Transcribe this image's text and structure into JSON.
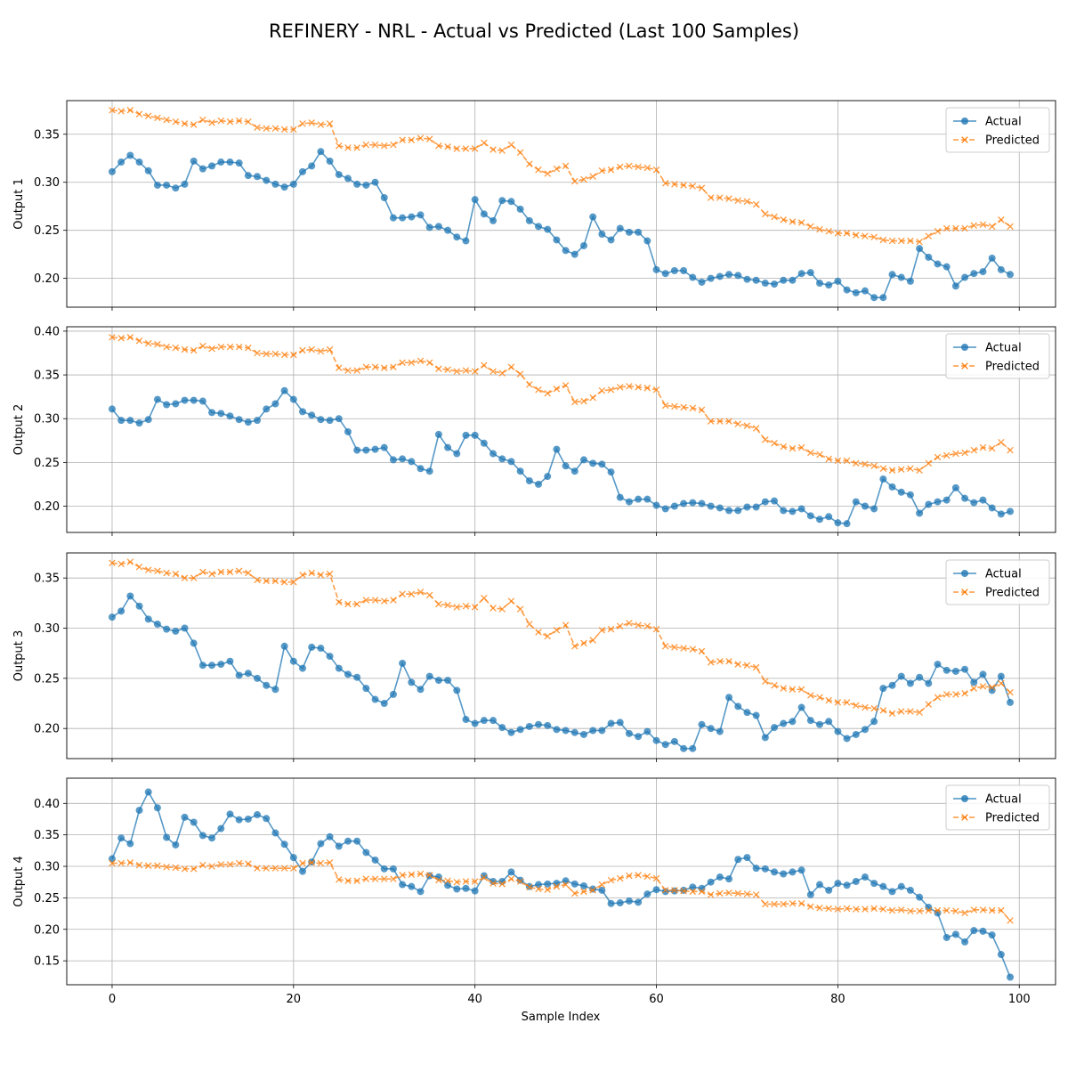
{
  "figure": {
    "title": "REFINERY - NRL - Actual vs Predicted (Last 100 Samples)",
    "xlabel": "Sample Index"
  },
  "colors": {
    "actual": "#1f77b4",
    "predicted": "#ff7f0e",
    "grid": "#b0b0b0"
  },
  "chart_data": [
    {
      "type": "line",
      "ylabel": "Output 1",
      "xlim": [
        -5,
        104
      ],
      "ylim": [
        0.17,
        0.385
      ],
      "xticks": [
        0,
        20,
        40,
        60,
        80,
        100
      ],
      "yticks": [
        0.2,
        0.25,
        0.3,
        0.35
      ],
      "grid": true,
      "legend_position": "top-right",
      "series": [
        {
          "name": "Actual",
          "style": "solid-circle",
          "values": [
            0.311,
            0.321,
            0.328,
            0.321,
            0.312,
            0.297,
            0.297,
            0.294,
            0.298,
            0.322,
            0.314,
            0.317,
            0.321,
            0.321,
            0.32,
            0.307,
            0.306,
            0.302,
            0.298,
            0.295,
            0.298,
            0.311,
            0.317,
            0.332,
            0.322,
            0.308,
            0.304,
            0.298,
            0.297,
            0.3,
            0.284,
            0.263,
            0.263,
            0.264,
            0.266,
            0.253,
            0.254,
            0.25,
            0.243,
            0.239,
            0.282,
            0.267,
            0.26,
            0.281,
            0.28,
            0.272,
            0.26,
            0.254,
            0.251,
            0.24,
            0.229,
            0.225,
            0.234,
            0.264,
            0.246,
            0.24,
            0.252,
            0.248,
            0.248,
            0.239,
            0.209,
            0.205,
            0.208,
            0.208,
            0.201,
            0.196,
            0.2,
            0.202,
            0.204,
            0.203,
            0.199,
            0.198,
            0.195,
            0.194,
            0.198,
            0.198,
            0.205,
            0.206,
            0.195,
            0.193,
            0.197,
            0.188,
            0.185,
            0.187,
            0.18,
            0.18,
            0.204,
            0.201,
            0.197,
            0.231,
            0.222,
            0.215,
            0.212,
            0.192,
            0.201,
            0.205,
            0.207,
            0.221,
            0.209,
            0.204
          ]
        },
        {
          "name": "Predicted",
          "style": "dashed-x",
          "values": [
            0.375,
            0.374,
            0.375,
            0.371,
            0.369,
            0.367,
            0.365,
            0.363,
            0.361,
            0.36,
            0.365,
            0.362,
            0.364,
            0.363,
            0.364,
            0.363,
            0.357,
            0.356,
            0.356,
            0.355,
            0.355,
            0.361,
            0.362,
            0.36,
            0.361,
            0.338,
            0.336,
            0.336,
            0.339,
            0.339,
            0.338,
            0.339,
            0.344,
            0.344,
            0.346,
            0.345,
            0.338,
            0.337,
            0.335,
            0.335,
            0.335,
            0.341,
            0.334,
            0.333,
            0.339,
            0.331,
            0.319,
            0.313,
            0.309,
            0.314,
            0.317,
            0.301,
            0.303,
            0.306,
            0.312,
            0.313,
            0.316,
            0.317,
            0.316,
            0.315,
            0.313,
            0.299,
            0.298,
            0.297,
            0.296,
            0.294,
            0.284,
            0.284,
            0.283,
            0.281,
            0.28,
            0.277,
            0.267,
            0.264,
            0.261,
            0.259,
            0.258,
            0.254,
            0.251,
            0.249,
            0.247,
            0.247,
            0.245,
            0.244,
            0.243,
            0.24,
            0.239,
            0.239,
            0.239,
            0.238,
            0.244,
            0.249,
            0.252,
            0.252,
            0.252,
            0.255,
            0.256,
            0.254,
            0.261,
            0.254
          ]
        }
      ]
    },
    {
      "type": "line",
      "ylabel": "Output 2",
      "xlim": [
        -5,
        104
      ],
      "ylim": [
        0.17,
        0.405
      ],
      "xticks": [
        0,
        20,
        40,
        60,
        80,
        100
      ],
      "yticks": [
        0.2,
        0.25,
        0.3,
        0.35,
        0.4
      ],
      "grid": true,
      "legend_position": "top-right",
      "series": [
        {
          "name": "Actual",
          "style": "solid-circle",
          "values": [
            0.311,
            0.298,
            0.298,
            0.295,
            0.299,
            0.322,
            0.316,
            0.317,
            0.321,
            0.321,
            0.32,
            0.307,
            0.306,
            0.303,
            0.299,
            0.296,
            0.298,
            0.311,
            0.317,
            0.332,
            0.322,
            0.308,
            0.304,
            0.299,
            0.298,
            0.3,
            0.285,
            0.264,
            0.264,
            0.265,
            0.267,
            0.253,
            0.254,
            0.251,
            0.243,
            0.24,
            0.282,
            0.267,
            0.26,
            0.281,
            0.281,
            0.272,
            0.26,
            0.254,
            0.251,
            0.24,
            0.229,
            0.225,
            0.234,
            0.265,
            0.246,
            0.24,
            0.253,
            0.249,
            0.248,
            0.239,
            0.21,
            0.205,
            0.208,
            0.208,
            0.201,
            0.197,
            0.2,
            0.203,
            0.204,
            0.203,
            0.2,
            0.198,
            0.195,
            0.195,
            0.199,
            0.199,
            0.205,
            0.206,
            0.195,
            0.194,
            0.197,
            0.189,
            0.185,
            0.188,
            0.181,
            0.18,
            0.205,
            0.2,
            0.197,
            0.231,
            0.222,
            0.216,
            0.213,
            0.192,
            0.202,
            0.205,
            0.207,
            0.221,
            0.209,
            0.204,
            0.207,
            0.198,
            0.191,
            0.194
          ]
        },
        {
          "name": "Predicted",
          "style": "dashed-x",
          "values": [
            0.393,
            0.392,
            0.393,
            0.389,
            0.386,
            0.385,
            0.382,
            0.381,
            0.379,
            0.378,
            0.383,
            0.38,
            0.382,
            0.382,
            0.382,
            0.381,
            0.375,
            0.374,
            0.374,
            0.373,
            0.373,
            0.378,
            0.379,
            0.377,
            0.379,
            0.358,
            0.355,
            0.355,
            0.359,
            0.359,
            0.358,
            0.359,
            0.364,
            0.364,
            0.366,
            0.364,
            0.357,
            0.356,
            0.354,
            0.355,
            0.354,
            0.361,
            0.354,
            0.352,
            0.359,
            0.351,
            0.339,
            0.333,
            0.329,
            0.334,
            0.338,
            0.319,
            0.32,
            0.324,
            0.332,
            0.333,
            0.336,
            0.337,
            0.336,
            0.335,
            0.333,
            0.315,
            0.314,
            0.313,
            0.312,
            0.31,
            0.297,
            0.297,
            0.297,
            0.294,
            0.292,
            0.289,
            0.276,
            0.272,
            0.268,
            0.266,
            0.267,
            0.261,
            0.259,
            0.254,
            0.252,
            0.252,
            0.249,
            0.248,
            0.246,
            0.243,
            0.241,
            0.242,
            0.243,
            0.241,
            0.249,
            0.256,
            0.258,
            0.26,
            0.261,
            0.264,
            0.267,
            0.266,
            0.273,
            0.264
          ]
        }
      ]
    },
    {
      "type": "line",
      "ylabel": "Output 3",
      "xlim": [
        -5,
        104
      ],
      "ylim": [
        0.17,
        0.375
      ],
      "xticks": [
        0,
        20,
        40,
        60,
        80,
        100
      ],
      "yticks": [
        0.2,
        0.25,
        0.3,
        0.35
      ],
      "grid": true,
      "legend_position": "top-right",
      "series": [
        {
          "name": "Actual",
          "style": "solid-circle",
          "values": [
            0.311,
            0.317,
            0.332,
            0.322,
            0.309,
            0.304,
            0.299,
            0.297,
            0.3,
            0.285,
            0.263,
            0.263,
            0.264,
            0.267,
            0.253,
            0.255,
            0.25,
            0.243,
            0.239,
            0.282,
            0.267,
            0.26,
            0.281,
            0.28,
            0.272,
            0.26,
            0.254,
            0.251,
            0.24,
            0.229,
            0.225,
            0.234,
            0.265,
            0.246,
            0.239,
            0.252,
            0.248,
            0.248,
            0.238,
            0.209,
            0.205,
            0.208,
            0.208,
            0.201,
            0.196,
            0.199,
            0.202,
            0.204,
            0.203,
            0.199,
            0.198,
            0.196,
            0.194,
            0.198,
            0.198,
            0.205,
            0.206,
            0.195,
            0.192,
            0.197,
            0.188,
            0.184,
            0.187,
            0.18,
            0.18,
            0.204,
            0.2,
            0.197,
            0.231,
            0.222,
            0.216,
            0.213,
            0.191,
            0.201,
            0.205,
            0.207,
            0.221,
            0.208,
            0.204,
            0.207,
            0.197,
            0.19,
            0.194,
            0.199,
            0.207,
            0.24,
            0.243,
            0.252,
            0.245,
            0.251,
            0.245,
            0.264,
            0.258,
            0.257,
            0.259,
            0.246,
            0.254,
            0.238,
            0.252,
            0.226
          ]
        },
        {
          "name": "Predicted",
          "style": "dashed-x",
          "values": [
            0.365,
            0.364,
            0.366,
            0.361,
            0.358,
            0.357,
            0.355,
            0.354,
            0.35,
            0.35,
            0.356,
            0.354,
            0.356,
            0.356,
            0.357,
            0.355,
            0.348,
            0.347,
            0.347,
            0.346,
            0.346,
            0.353,
            0.355,
            0.353,
            0.354,
            0.326,
            0.324,
            0.324,
            0.328,
            0.328,
            0.327,
            0.328,
            0.334,
            0.334,
            0.336,
            0.333,
            0.324,
            0.323,
            0.321,
            0.322,
            0.321,
            0.33,
            0.32,
            0.319,
            0.327,
            0.319,
            0.304,
            0.296,
            0.292,
            0.298,
            0.303,
            0.282,
            0.285,
            0.288,
            0.298,
            0.299,
            0.302,
            0.305,
            0.303,
            0.302,
            0.299,
            0.282,
            0.281,
            0.28,
            0.279,
            0.277,
            0.266,
            0.267,
            0.267,
            0.264,
            0.263,
            0.261,
            0.247,
            0.243,
            0.24,
            0.239,
            0.239,
            0.233,
            0.231,
            0.228,
            0.226,
            0.226,
            0.223,
            0.221,
            0.22,
            0.218,
            0.215,
            0.217,
            0.217,
            0.216,
            0.224,
            0.231,
            0.234,
            0.234,
            0.235,
            0.24,
            0.242,
            0.241,
            0.245,
            0.236
          ]
        }
      ]
    },
    {
      "type": "line",
      "ylabel": "Output 4",
      "xlim": [
        -5,
        104
      ],
      "ylim": [
        0.112,
        0.44
      ],
      "xticks": [
        0,
        20,
        40,
        60,
        80,
        100
      ],
      "yticks": [
        0.15,
        0.2,
        0.25,
        0.3,
        0.35,
        0.4
      ],
      "grid": true,
      "legend_position": "top-right",
      "series": [
        {
          "name": "Actual",
          "style": "solid-circle",
          "values": [
            0.312,
            0.345,
            0.336,
            0.389,
            0.418,
            0.393,
            0.346,
            0.334,
            0.378,
            0.37,
            0.349,
            0.345,
            0.36,
            0.383,
            0.374,
            0.375,
            0.382,
            0.376,
            0.353,
            0.335,
            0.314,
            0.292,
            0.307,
            0.336,
            0.347,
            0.332,
            0.34,
            0.34,
            0.322,
            0.31,
            0.296,
            0.296,
            0.271,
            0.268,
            0.26,
            0.285,
            0.283,
            0.27,
            0.264,
            0.265,
            0.261,
            0.285,
            0.276,
            0.276,
            0.291,
            0.278,
            0.268,
            0.271,
            0.272,
            0.273,
            0.277,
            0.272,
            0.269,
            0.264,
            0.262,
            0.241,
            0.242,
            0.245,
            0.243,
            0.256,
            0.263,
            0.26,
            0.261,
            0.262,
            0.267,
            0.265,
            0.275,
            0.283,
            0.28,
            0.311,
            0.314,
            0.297,
            0.296,
            0.291,
            0.288,
            0.291,
            0.294,
            0.255,
            0.271,
            0.262,
            0.273,
            0.27,
            0.276,
            0.283,
            0.273,
            0.268,
            0.26,
            0.268,
            0.262,
            0.251,
            0.235,
            0.226,
            0.187,
            0.192,
            0.18,
            0.198,
            0.197,
            0.191,
            0.16,
            0.124
          ]
        },
        {
          "name": "Predicted",
          "style": "dashed-x",
          "values": [
            0.305,
            0.305,
            0.306,
            0.302,
            0.301,
            0.301,
            0.299,
            0.298,
            0.296,
            0.296,
            0.302,
            0.3,
            0.303,
            0.303,
            0.305,
            0.304,
            0.297,
            0.297,
            0.297,
            0.297,
            0.297,
            0.305,
            0.306,
            0.305,
            0.306,
            0.279,
            0.277,
            0.277,
            0.28,
            0.28,
            0.28,
            0.28,
            0.286,
            0.287,
            0.288,
            0.286,
            0.278,
            0.277,
            0.275,
            0.276,
            0.276,
            0.282,
            0.273,
            0.272,
            0.28,
            0.276,
            0.267,
            0.264,
            0.263,
            0.268,
            0.271,
            0.257,
            0.26,
            0.262,
            0.271,
            0.278,
            0.281,
            0.285,
            0.286,
            0.284,
            0.281,
            0.262,
            0.262,
            0.261,
            0.26,
            0.26,
            0.255,
            0.257,
            0.258,
            0.257,
            0.256,
            0.255,
            0.24,
            0.24,
            0.24,
            0.241,
            0.241,
            0.236,
            0.234,
            0.233,
            0.232,
            0.233,
            0.232,
            0.232,
            0.233,
            0.232,
            0.23,
            0.231,
            0.229,
            0.229,
            0.23,
            0.23,
            0.23,
            0.229,
            0.226,
            0.231,
            0.231,
            0.23,
            0.23,
            0.214
          ]
        }
      ]
    }
  ]
}
